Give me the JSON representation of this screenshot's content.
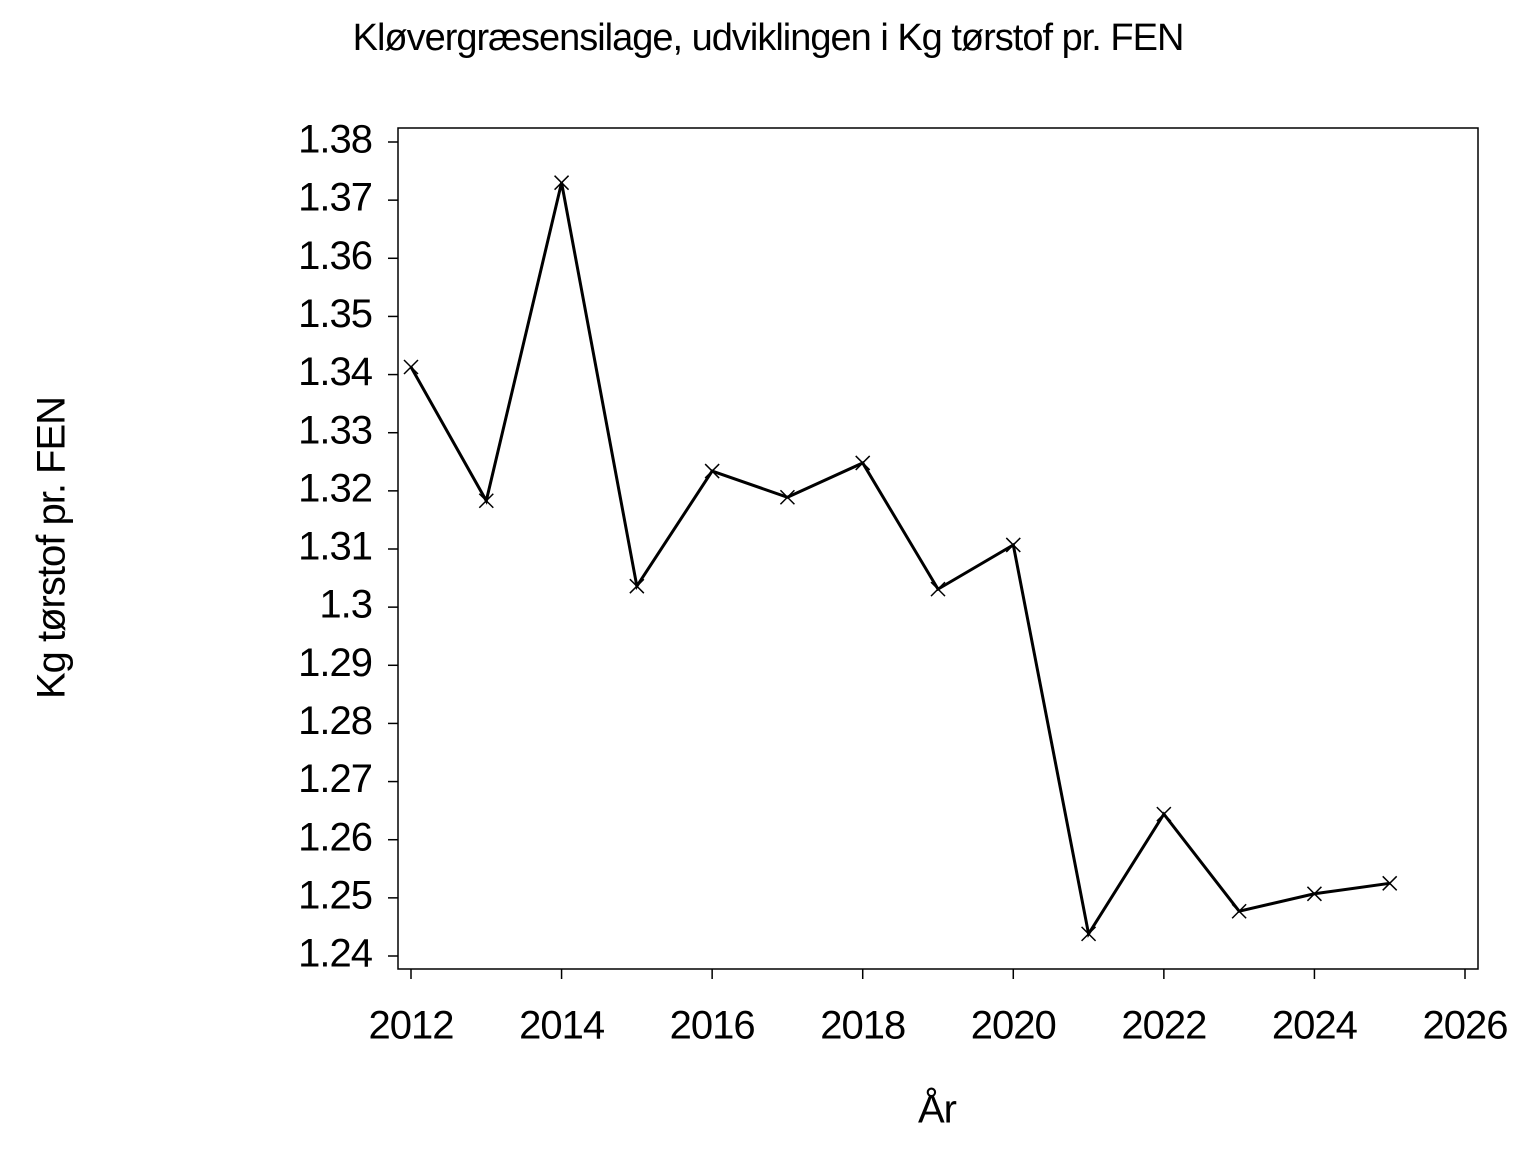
{
  "chart_data": {
    "type": "line",
    "title": "Kløvergræsensilage,  udviklingen  i  Kg  tørstof  pr.  FEN",
    "x_label": "År",
    "y_label": "Kg  tørstof  pr.  FEN",
    "x": [
      2012,
      2013,
      2014,
      2015,
      2016,
      2017,
      2018,
      2019,
      2020,
      2021,
      2022,
      2023,
      2024,
      2025
    ],
    "series": [
      {
        "color": "#000000",
        "values": [
          1.3413,
          1.3183,
          1.373,
          1.3036,
          1.3234,
          1.3189,
          1.3248,
          1.3031,
          1.3107,
          1.2438,
          1.2644,
          1.2477,
          1.2507,
          1.2525
        ]
      }
    ],
    "xlim": [
      2012,
      2026
    ],
    "xticks": [
      2012,
      2014,
      2016,
      2018,
      2020,
      2022,
      2024,
      2026
    ],
    "ylim": [
      1.24,
      1.38
    ],
    "yticks": [
      1.24,
      1.25,
      1.26,
      1.27,
      1.28,
      1.29,
      1.3,
      1.31,
      1.32,
      1.33,
      1.34,
      1.35,
      1.36,
      1.37,
      1.38
    ],
    "grid": false
  }
}
